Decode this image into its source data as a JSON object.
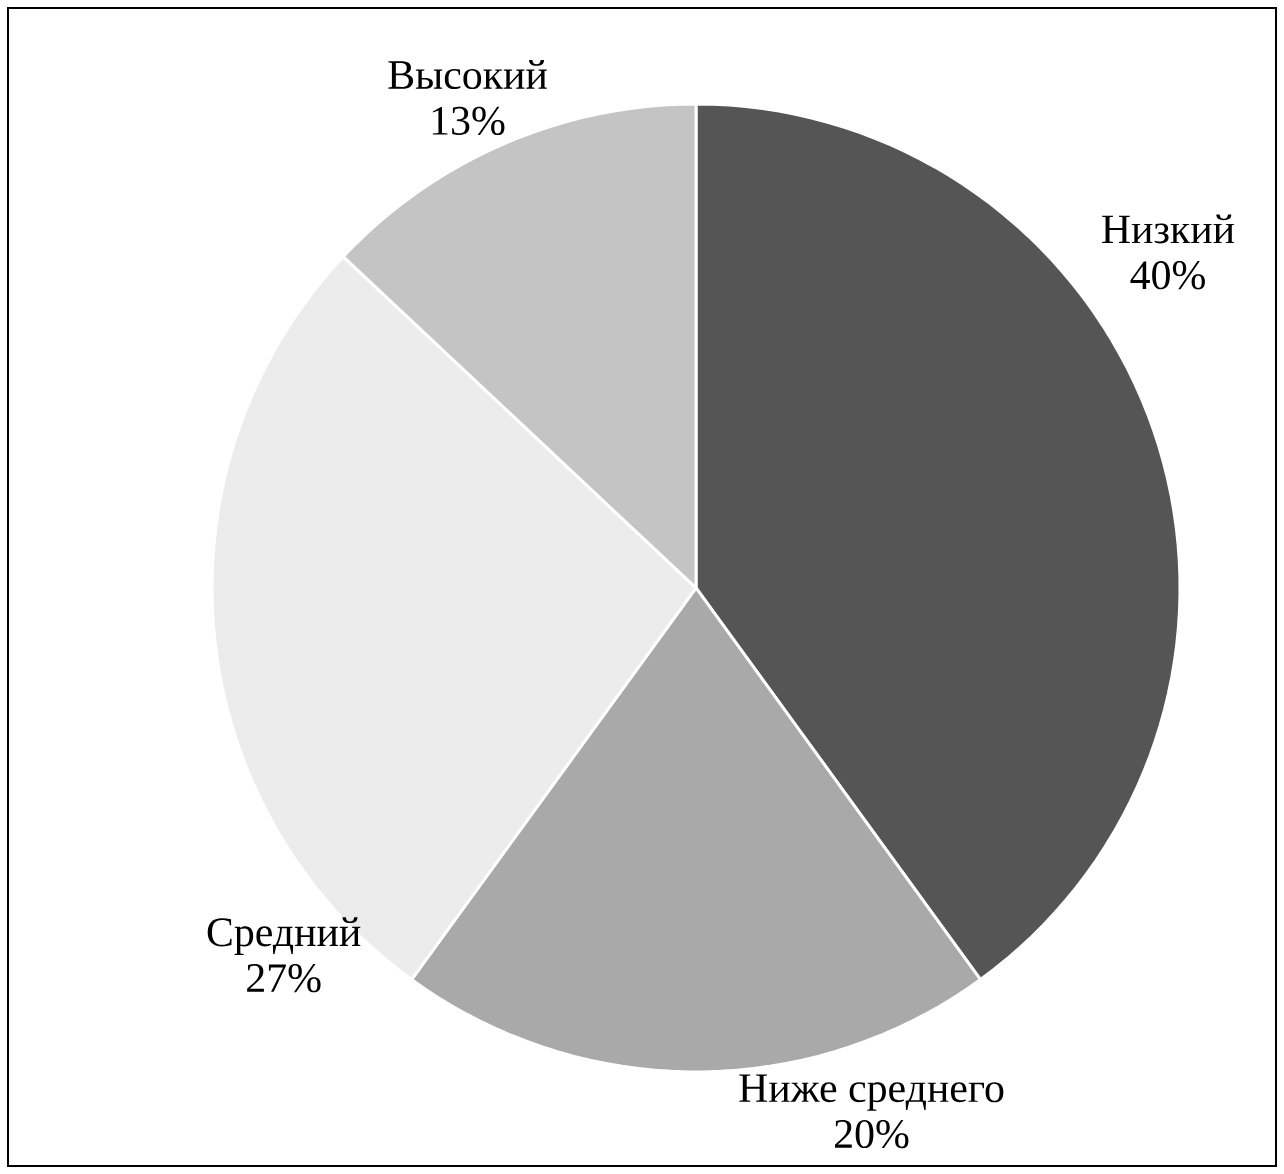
{
  "chart_data": {
    "type": "pie",
    "categories": [
      "Низкий",
      "Ниже среднего",
      "Средний",
      "Высокий"
    ],
    "values": [
      40,
      20,
      27,
      13
    ],
    "value_labels": [
      "40%",
      "20%",
      "27%",
      "13%"
    ],
    "colors": [
      "#555555",
      "#a9a9a9",
      "#ececec",
      "#c4c4c4"
    ]
  }
}
